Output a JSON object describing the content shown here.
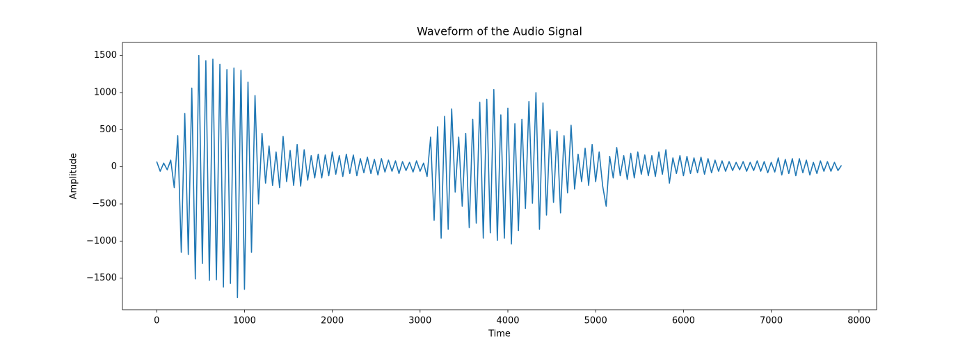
{
  "chart_data": {
    "type": "line",
    "title": "Waveform of the Audio Signal",
    "xlabel": "Time",
    "ylabel": "Amplitude",
    "x": [
      0,
      40,
      80,
      120,
      160,
      200,
      240,
      280,
      320,
      360,
      400,
      440,
      480,
      520,
      560,
      600,
      640,
      680,
      720,
      760,
      800,
      840,
      880,
      920,
      960,
      1000,
      1040,
      1080,
      1120,
      1160,
      1200,
      1240,
      1280,
      1320,
      1360,
      1400,
      1440,
      1480,
      1520,
      1560,
      1600,
      1640,
      1680,
      1720,
      1760,
      1800,
      1840,
      1880,
      1920,
      1960,
      2000,
      2040,
      2080,
      2120,
      2160,
      2200,
      2240,
      2280,
      2320,
      2360,
      2400,
      2440,
      2480,
      2520,
      2560,
      2600,
      2640,
      2680,
      2720,
      2760,
      2800,
      2840,
      2880,
      2920,
      2960,
      3000,
      3040,
      3080,
      3120,
      3160,
      3200,
      3240,
      3280,
      3320,
      3360,
      3400,
      3440,
      3480,
      3520,
      3560,
      3600,
      3640,
      3680,
      3720,
      3760,
      3800,
      3840,
      3880,
      3920,
      3960,
      4000,
      4040,
      4080,
      4120,
      4160,
      4200,
      4240,
      4280,
      4320,
      4360,
      4400,
      4440,
      4480,
      4520,
      4560,
      4600,
      4640,
      4680,
      4720,
      4760,
      4800,
      4840,
      4880,
      4920,
      4960,
      5000,
      5040,
      5080,
      5120,
      5160,
      5200,
      5240,
      5280,
      5320,
      5360,
      5400,
      5440,
      5480,
      5520,
      5560,
      5600,
      5640,
      5680,
      5720,
      5760,
      5800,
      5840,
      5880,
      5920,
      5960,
      6000,
      6040,
      6080,
      6120,
      6160,
      6200,
      6240,
      6280,
      6320,
      6360,
      6400,
      6440,
      6480,
      6520,
      6560,
      6600,
      6640,
      6680,
      6720,
      6760,
      6800,
      6840,
      6880,
      6920,
      6960,
      7000,
      7040,
      7080,
      7120,
      7160,
      7200,
      7240,
      7280,
      7320,
      7360,
      7400,
      7440,
      7480,
      7520,
      7560,
      7600,
      7640,
      7680,
      7720,
      7760,
      7800
    ],
    "series": [
      {
        "color": "#1f77b4",
        "values": [
          70,
          -60,
          50,
          -40,
          90,
          -280,
          420,
          -1150,
          720,
          -1180,
          1060,
          -1510,
          1500,
          -1300,
          1430,
          -1530,
          1450,
          -1520,
          1380,
          -1620,
          1310,
          -1570,
          1330,
          -1760,
          1300,
          -1650,
          1140,
          -1150,
          960,
          -500,
          450,
          -220,
          280,
          -250,
          200,
          -280,
          410,
          -200,
          220,
          -250,
          300,
          -260,
          230,
          -180,
          150,
          -150,
          170,
          -150,
          160,
          -120,
          200,
          -100,
          150,
          -130,
          170,
          -90,
          160,
          -120,
          110,
          -80,
          130,
          -90,
          100,
          -110,
          110,
          -70,
          90,
          -60,
          80,
          -90,
          70,
          -50,
          60,
          -70,
          80,
          -60,
          50,
          -130,
          400,
          -720,
          540,
          -960,
          680,
          -840,
          780,
          -340,
          400,
          -530,
          450,
          -820,
          640,
          -760,
          870,
          -960,
          910,
          -890,
          1040,
          -990,
          700,
          -960,
          790,
          -1040,
          580,
          -860,
          640,
          -560,
          880,
          -490,
          1000,
          -840,
          860,
          -650,
          500,
          -480,
          480,
          -620,
          420,
          -350,
          560,
          -300,
          170,
          -200,
          250,
          -250,
          300,
          -200,
          200,
          -260,
          -530,
          140,
          -150,
          260,
          -120,
          150,
          -170,
          180,
          -150,
          200,
          -100,
          160,
          -120,
          150,
          -130,
          200,
          -100,
          230,
          -220,
          120,
          -90,
          150,
          -120,
          140,
          -90,
          120,
          -80,
          130,
          -100,
          110,
          -80,
          90,
          -60,
          80,
          -60,
          70,
          -50,
          60,
          -40,
          70,
          -60,
          60,
          -50,
          80,
          -60,
          70,
          -80,
          60,
          -70,
          120,
          -110,
          100,
          -90,
          110,
          -120,
          110,
          -80,
          90,
          -110,
          60,
          -90,
          80,
          -60,
          70,
          -60,
          60,
          -50,
          20
        ]
      }
    ],
    "xlim": [
      -390,
      8200
    ],
    "ylim": [
      -1925,
      1675
    ],
    "xticks": [
      0,
      1000,
      2000,
      3000,
      4000,
      5000,
      6000,
      7000,
      8000
    ],
    "yticks": [
      {
        "value": -1500,
        "label": "−1500"
      },
      {
        "value": -1000,
        "label": "−1000"
      },
      {
        "value": -500,
        "label": "−500"
      },
      0,
      500,
      1000,
      1500
    ]
  }
}
